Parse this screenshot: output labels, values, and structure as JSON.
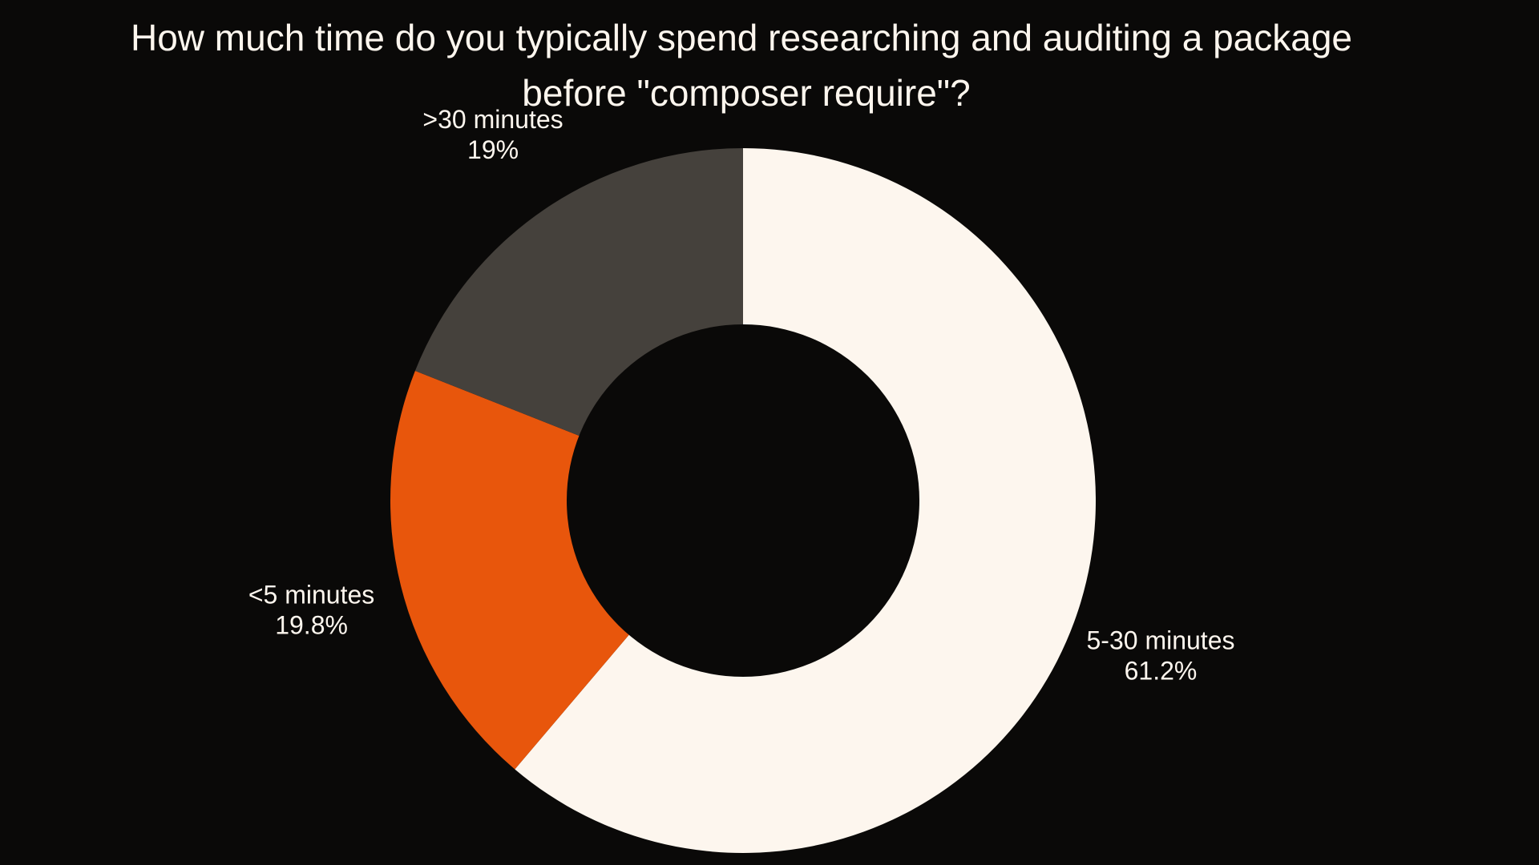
{
  "chart_data": {
    "type": "pie",
    "variant": "donut",
    "title_lines": [
      "How much time do you typically spend researching and auditing a package",
      "before \"composer require\"?"
    ],
    "slices": [
      {
        "label": "5-30 minutes",
        "value": 61.2,
        "value_label": "61.2%",
        "color": "#fdf6ee"
      },
      {
        "label": "<5 minutes",
        "value": 19.8,
        "value_label": "19.8%",
        "color": "#e8560c"
      },
      {
        "label": ">30 minutes",
        "value": 19,
        "value_label": "19%",
        "color": "#45413c"
      }
    ],
    "start_angle": "12 o'clock",
    "direction": "clockwise",
    "legend": "none",
    "background": "#0a0908"
  }
}
